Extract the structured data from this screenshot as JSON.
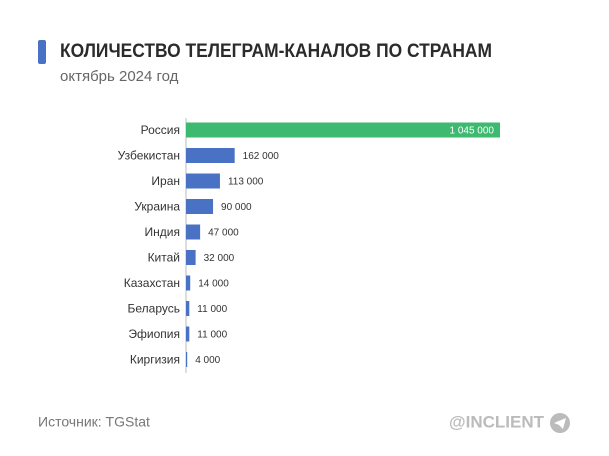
{
  "chart_data": {
    "type": "bar",
    "orientation": "horizontal",
    "title": "КОЛИЧЕСТВО ТЕЛЕГРАМ-КАНАЛОВ ПО СТРАНАМ",
    "subtitle": "октябрь 2024 год",
    "categories": [
      "Россия",
      "Узбекистан",
      "Иран",
      "Украина",
      "Индия",
      "Китай",
      "Казахстан",
      "Беларусь",
      "Эфиопия",
      "Киргизия"
    ],
    "values": [
      1045000,
      162000,
      113000,
      90000,
      47000,
      32000,
      14000,
      11000,
      11000,
      4000
    ],
    "value_labels": [
      "1 045 000",
      "162 000",
      "113 000",
      "90 000",
      "47 000",
      "32 000",
      "14 000",
      "11 000",
      "11 000",
      "4 000"
    ],
    "colors": [
      "#3dba6f",
      "#4a72c4",
      "#4a72c4",
      "#4a72c4",
      "#4a72c4",
      "#4a72c4",
      "#4a72c4",
      "#4a72c4",
      "#4a72c4",
      "#4a72c4"
    ],
    "source": "Источник: TGStat",
    "brand": "@INCLIENT"
  }
}
